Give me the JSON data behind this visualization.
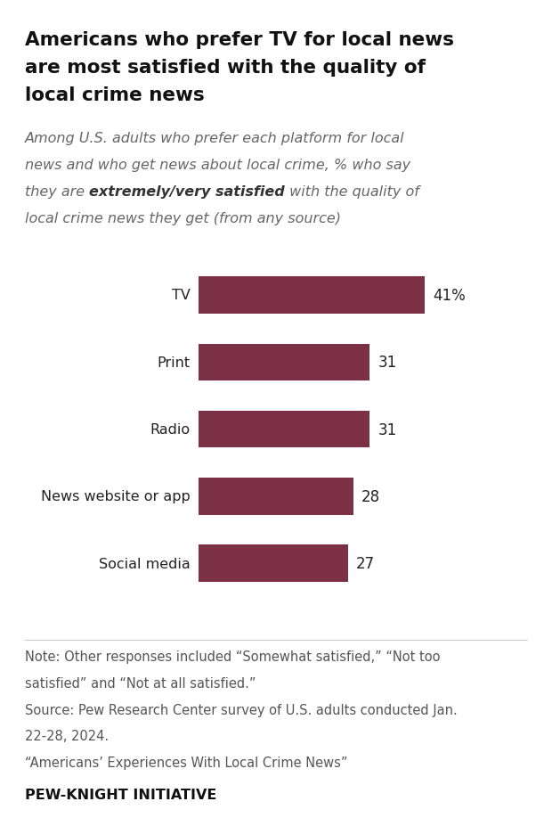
{
  "title_line1": "Americans who prefer TV for local news",
  "title_line2": "are most satisfied with the quality of",
  "title_line3": "local crime news",
  "subtitle_line1": "Among U.S. adults who prefer each platform for local",
  "subtitle_line2": "news and who get news about local crime, % who say",
  "subtitle_line3a": "they are ",
  "subtitle_line3b": "extremely/very satisfied",
  "subtitle_line3c": " with the quality of",
  "subtitle_line4": "local crime news they get (from any source)",
  "categories": [
    "TV",
    "Print",
    "Radio",
    "News website or app",
    "Social media"
  ],
  "values": [
    41,
    31,
    31,
    28,
    27
  ],
  "value_labels": [
    "41%",
    "31",
    "31",
    "28",
    "27"
  ],
  "bar_color": "#7B3045",
  "background_color": "#FFFFFF",
  "xlim": [
    0,
    55
  ],
  "note_line1": "Note: Other responses included “Somewhat satisfied,” “Not too",
  "note_line2": "satisfied” and “Not at all satisfied.”",
  "note_line3": "Source: Pew Research Center survey of U.S. adults conducted Jan.",
  "note_line4": "22-28, 2024.",
  "note_line5": "“Americans’ Experiences With Local Crime News”",
  "footer": "PEW-KNIGHT INITIATIVE",
  "title_fontsize": 15.5,
  "subtitle_fontsize": 11.5,
  "label_fontsize": 11.5,
  "value_fontsize": 12,
  "note_fontsize": 10.5,
  "footer_fontsize": 11.5
}
